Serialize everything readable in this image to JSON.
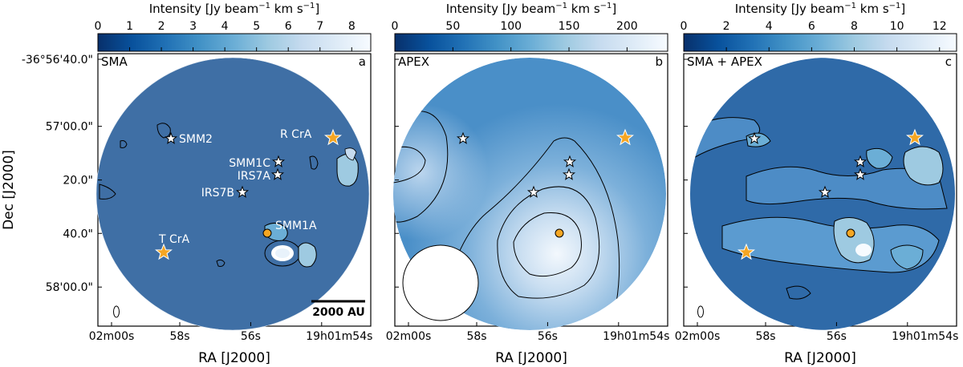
{
  "figure": {
    "xlabel": "RA [J2000]",
    "ylabel": "Dec [J2000]",
    "x_ticks": [
      "02m00s",
      "58s",
      "56s",
      "19h01m54s"
    ],
    "y_ticks": [
      "-36°56'40.0\"",
      "57'00.0\"",
      "20.0\"",
      "40.0\"",
      "58'00.0\""
    ],
    "colorbar_label_prefix": "Intensity [Jy beam",
    "colorbar_label_exp": "−1",
    "colorbar_label_mid": " km s",
    "colorbar_label_suffix": "]",
    "colormap": [
      "#08306b",
      "#08519c",
      "#2171b5",
      "#4292c6",
      "#6baed6",
      "#9ecae1",
      "#c6dbef",
      "#deebf7",
      "#f7fbff"
    ],
    "marker_colors": {
      "star_white": "#ffffff",
      "star_orange": "#f5a623",
      "circle_orange": "#f5a623"
    }
  },
  "chart_data": [
    {
      "type": "heatmap",
      "panel_label": "a",
      "title": "SMA",
      "colorbar": {
        "min": 0,
        "max": 8.6,
        "ticks": [
          0,
          1,
          2,
          3,
          4,
          5,
          6,
          7,
          8
        ]
      },
      "ra_axis_sec": [
        60,
        58,
        56,
        54
      ],
      "dec_axis_arcsec": [
        40,
        60,
        80,
        100,
        120
      ],
      "sources_labeled": [
        {
          "name": "SMM2",
          "ra": 58.8,
          "dec": 68
        },
        {
          "name": "R CrA",
          "ra": 53.7,
          "dec": 68
        },
        {
          "name": "SMM1C",
          "ra": 55.5,
          "dec": 78
        },
        {
          "name": "IRS7A",
          "ra": 55.5,
          "dec": 83
        },
        {
          "name": "IRS7B",
          "ra": 56.3,
          "dec": 87
        },
        {
          "name": "T CrA",
          "ra": 59.2,
          "dec": 109
        },
        {
          "name": "SMM1A",
          "ra": 55.3,
          "dec": 101
        }
      ],
      "scale_bar": "2000 AU",
      "beam": "small ellipse"
    },
    {
      "type": "heatmap",
      "panel_label": "b",
      "title": "APEX",
      "colorbar": {
        "min": 0,
        "max": 235,
        "ticks": [
          0,
          50,
          100,
          150,
          200
        ]
      },
      "beam": "large circle"
    },
    {
      "type": "heatmap",
      "panel_label": "c",
      "title": "SMA + APEX",
      "colorbar": {
        "min": 0,
        "max": 12.8,
        "ticks": [
          0,
          2,
          4,
          6,
          8,
          10,
          12
        ]
      },
      "beam": "small ellipse"
    }
  ]
}
